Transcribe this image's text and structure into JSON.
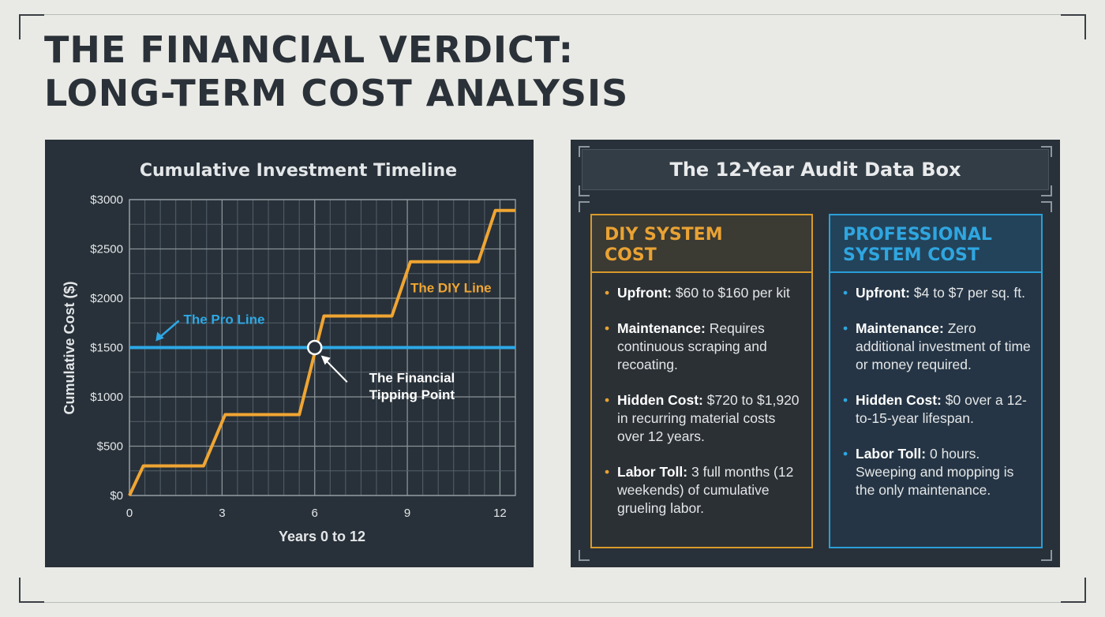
{
  "title": {
    "line1": "THE FINANCIAL VERDICT:",
    "line2": "LONG-TERM COST ANALYSIS"
  },
  "chart_data": {
    "type": "line",
    "title": "Cumulative Investment Timeline",
    "xlabel": "Years 0 to 12",
    "ylabel": "Cumulative Cost ($)",
    "xlim": [
      0,
      12.5
    ],
    "ylim": [
      0,
      3000
    ],
    "x_ticks": [
      0,
      3,
      6,
      9,
      12
    ],
    "y_ticks": [
      0,
      500,
      1000,
      1500,
      2000,
      2500,
      3000
    ],
    "y_tick_labels": [
      "$0",
      "$500",
      "$1000",
      "$1500",
      "$2000",
      "$2500",
      "$3000"
    ],
    "grid": true,
    "series": [
      {
        "name": "The DIY Line",
        "color": "#f0a532",
        "points": [
          [
            0,
            0
          ],
          [
            0.45,
            300
          ],
          [
            2.4,
            300
          ],
          [
            3.1,
            820
          ],
          [
            5.5,
            820
          ],
          [
            6.3,
            1820
          ],
          [
            8.5,
            1820
          ],
          [
            9.1,
            2370
          ],
          [
            11.3,
            2370
          ],
          [
            11.85,
            2890
          ],
          [
            12.5,
            2890
          ]
        ]
      },
      {
        "name": "The Pro Line",
        "color": "#2ea8e6",
        "points": [
          [
            0,
            1500
          ],
          [
            12.5,
            1500
          ]
        ]
      }
    ],
    "annotations": [
      {
        "text_line1": "The Financial",
        "text_line2": "Tipping Point",
        "x": 6,
        "y": 1500
      }
    ]
  },
  "audit": {
    "header": "The 12-Year Audit Data Box",
    "diy": {
      "title_line1": "DIY SYSTEM",
      "title_line2": "COST",
      "items": [
        {
          "label": "Upfront:",
          "text": "$60 to $160 per kit"
        },
        {
          "label": "Maintenance:",
          "text": "Requires continuous scraping and recoating."
        },
        {
          "label": "Hidden Cost:",
          "text": "$720 to $1,920 in recurring material costs over 12 years."
        },
        {
          "label": "Labor Toll:",
          "text": "3 full months (12 weekends) of cumulative grueling labor."
        }
      ]
    },
    "pro": {
      "title_line1": "PROFESSIONAL",
      "title_line2": "SYSTEM COST",
      "items": [
        {
          "label": "Upfront:",
          "text": "$4 to $7 per sq. ft."
        },
        {
          "label": "Maintenance:",
          "text": "Zero additional investment of time or money required."
        },
        {
          "label": "Hidden Cost:",
          "text": "$0 over a 12-to-15-year lifespan."
        },
        {
          "label": "Labor Toll:",
          "text": "0 hours. Sweeping and mopping is the only maintenance."
        }
      ]
    }
  }
}
